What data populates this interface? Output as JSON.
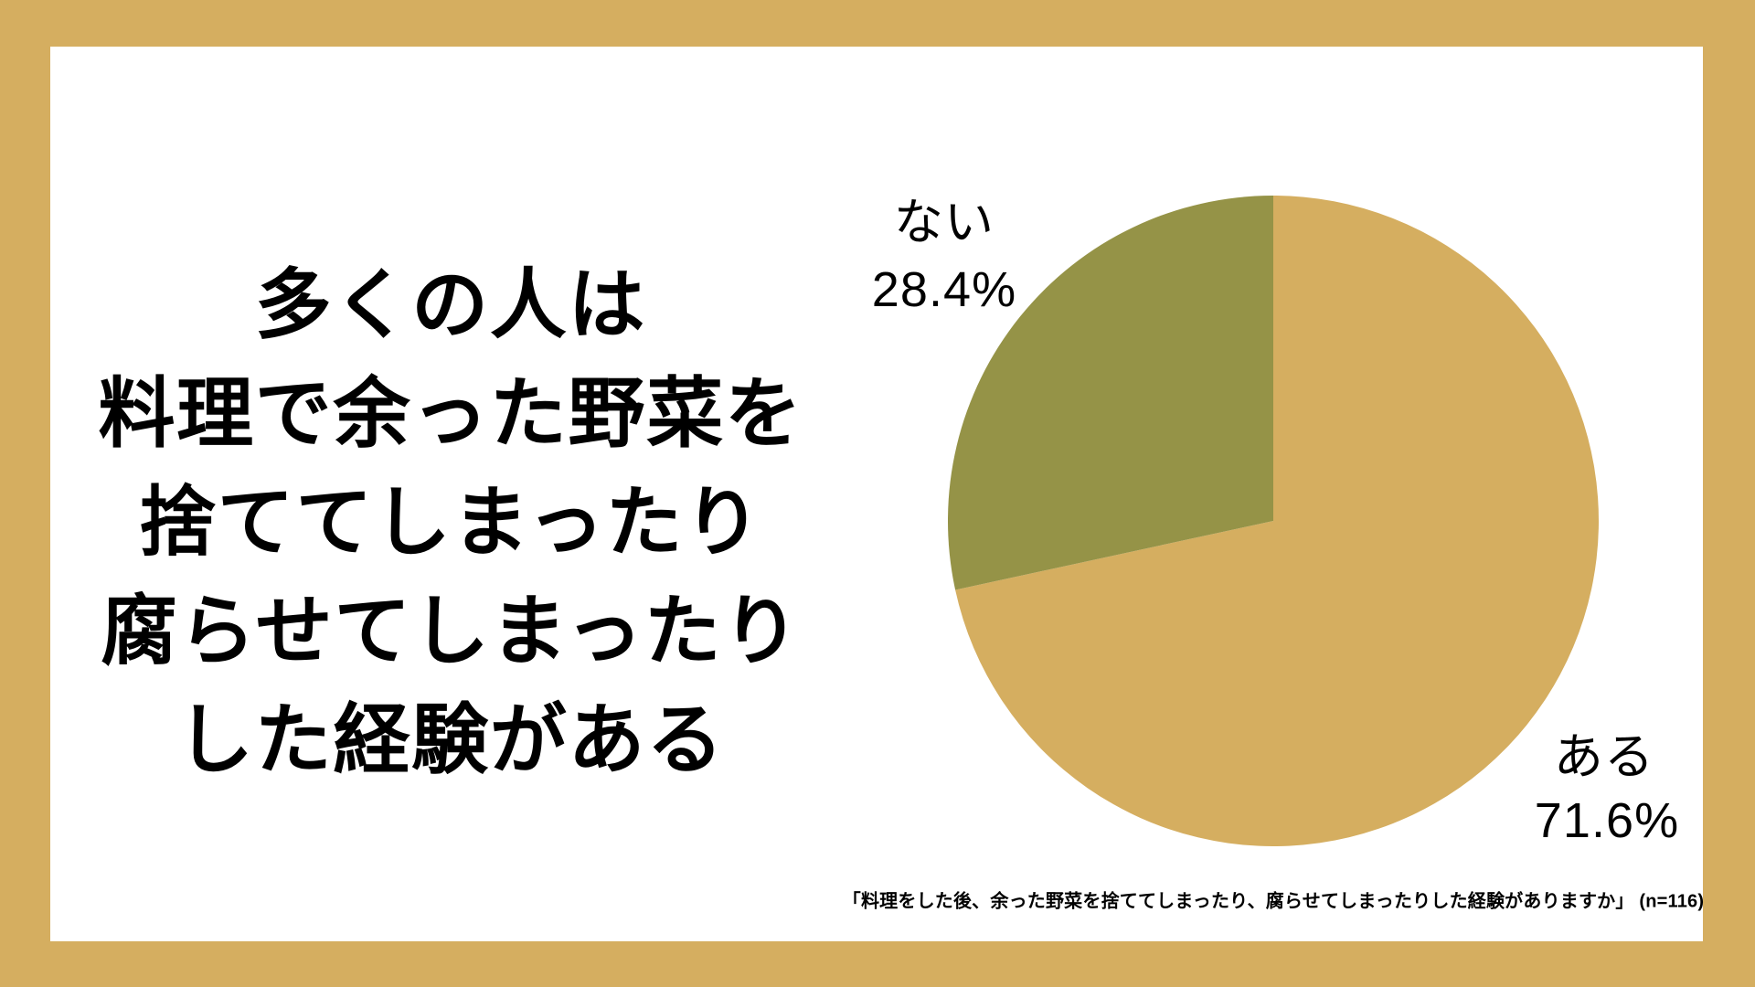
{
  "page": {
    "frame_color": "#D5AE60",
    "card_color": "#FFFFFF",
    "text_color": "#000000"
  },
  "headline": {
    "lines": [
      "多くの人は",
      "料理で余った野菜を",
      "捨ててしまったり",
      "腐らせてしまったり",
      "した経験がある"
    ]
  },
  "chart_data": {
    "type": "pie",
    "categories": [
      "ある",
      "ない"
    ],
    "values": [
      71.6,
      28.4
    ],
    "value_labels": [
      "71.6%",
      "28.4%"
    ],
    "colors": [
      "#D5AE60",
      "#959347"
    ],
    "start": "top",
    "direction": "clockwise",
    "legend_position": "none",
    "labels_position": "outside"
  },
  "source_note": "「料理をした後、余った野菜を捨ててしまったり、腐らせてしまったりした経験がありますか」 (n=116)"
}
